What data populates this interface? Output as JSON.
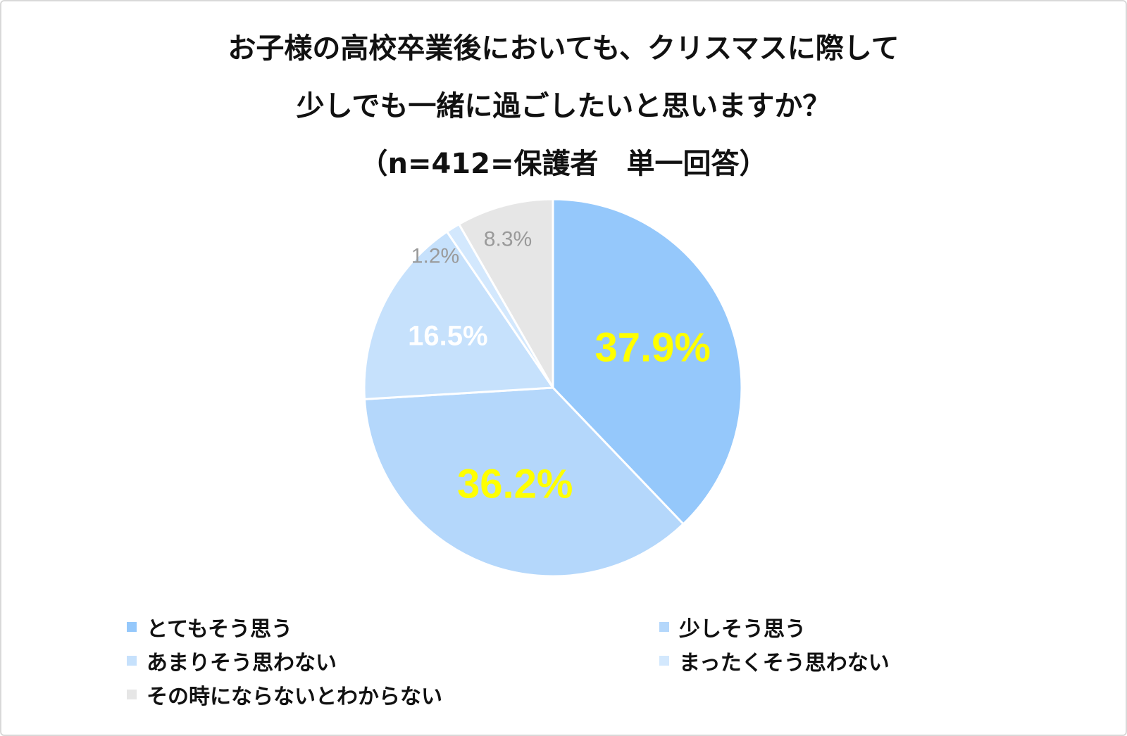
{
  "chart_data": {
    "type": "pie",
    "title": [
      "お子様の高校卒業後においても、クリスマスに際して",
      "少しでも一緒に過ごしたいと思いますか？",
      "（n=412=保護者　単一回答）"
    ],
    "slices": [
      {
        "name": "とてもそう思う",
        "value": 37.9,
        "label": "37.9%",
        "color": "#95c8fb",
        "label_color": "#ffff00",
        "label_bold": true
      },
      {
        "name": "少しそう思う",
        "value": 36.2,
        "label": "36.2%",
        "color": "#b4d7fb",
        "label_color": "#ffff00",
        "label_bold": true
      },
      {
        "name": "あまりそう思わない",
        "value": 16.5,
        "label": "16.5%",
        "color": "#c6e1fc",
        "label_color": "#ffffff",
        "label_bold": true
      },
      {
        "name": "まったくそう思わない",
        "value": 1.2,
        "label": "1.2%",
        "color": "#d3e8fd",
        "label_color": "#9a9a9a",
        "label_bold": false
      },
      {
        "name": "その時にならないとわからない",
        "value": 8.3,
        "label": "8.3%",
        "color": "#e6e6e6",
        "label_color": "#9a9a9a",
        "label_bold": false
      }
    ],
    "start": "12 o'clock",
    "direction": "clockwise",
    "legend": "bottom"
  }
}
